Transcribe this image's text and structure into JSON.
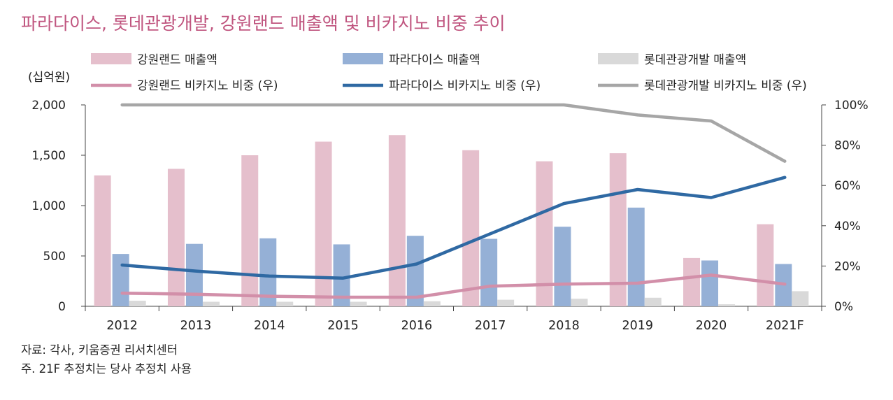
{
  "title": "파라다이스, 롯데관광개발, 강원랜드 매출액 및 비카지노 비중 추이",
  "notes": {
    "source": "자료: 각사, 키움증권 리서치센터",
    "note": "주. 21F 추정치는 당사 추정치 사용"
  },
  "chart_data": {
    "type": "bar",
    "title": "파라다이스, 롯데관광개발, 강원랜드 매출액 및 비카지노 비중 추이",
    "categories": [
      "2012",
      "2013",
      "2014",
      "2015",
      "2016",
      "2017",
      "2018",
      "2019",
      "2020",
      "2021F"
    ],
    "y_left_unit": "(십억원)",
    "y_left_range": [
      0,
      2000
    ],
    "y_left_ticks": [
      "0",
      "500",
      "1,000",
      "1,500",
      "2,000"
    ],
    "y_right_range": [
      0,
      100
    ],
    "y_right_ticks": [
      "0%",
      "20%",
      "40%",
      "60%",
      "80%",
      "100%"
    ],
    "grid": false,
    "legend_position": "top",
    "bar_series": [
      {
        "name": "강원랜드 매출액",
        "color": "#e5bfcc",
        "values": [
          1300,
          1365,
          1500,
          1635,
          1700,
          1550,
          1440,
          1520,
          480,
          815
        ]
      },
      {
        "name": "파라다이스 매출액",
        "color": "#95b0d6",
        "values": [
          520,
          620,
          675,
          615,
          700,
          670,
          790,
          980,
          455,
          420
        ]
      },
      {
        "name": "롯데관광개발 매출액",
        "color": "#d9d9d9",
        "values": [
          55,
          45,
          45,
          45,
          50,
          65,
          75,
          85,
          20,
          150
        ]
      }
    ],
    "line_series": [
      {
        "name": "강원랜드 비카지노 비중 (우)",
        "color": "#d28fa9",
        "values": [
          6.5,
          6,
          5,
          4.5,
          4.5,
          10,
          11,
          11.5,
          15.5,
          11
        ]
      },
      {
        "name": "파라다이스 비카지노 비중 (우)",
        "color": "#2f69a3",
        "values": [
          20.5,
          17.5,
          15,
          14,
          21,
          36,
          51,
          58,
          54,
          64
        ]
      },
      {
        "name": "롯데관광개발 비카지노 비중 (우)",
        "color": "#a6a6a6",
        "values": [
          100,
          100,
          100,
          100,
          100,
          100,
          100,
          95,
          92,
          72
        ]
      }
    ]
  }
}
